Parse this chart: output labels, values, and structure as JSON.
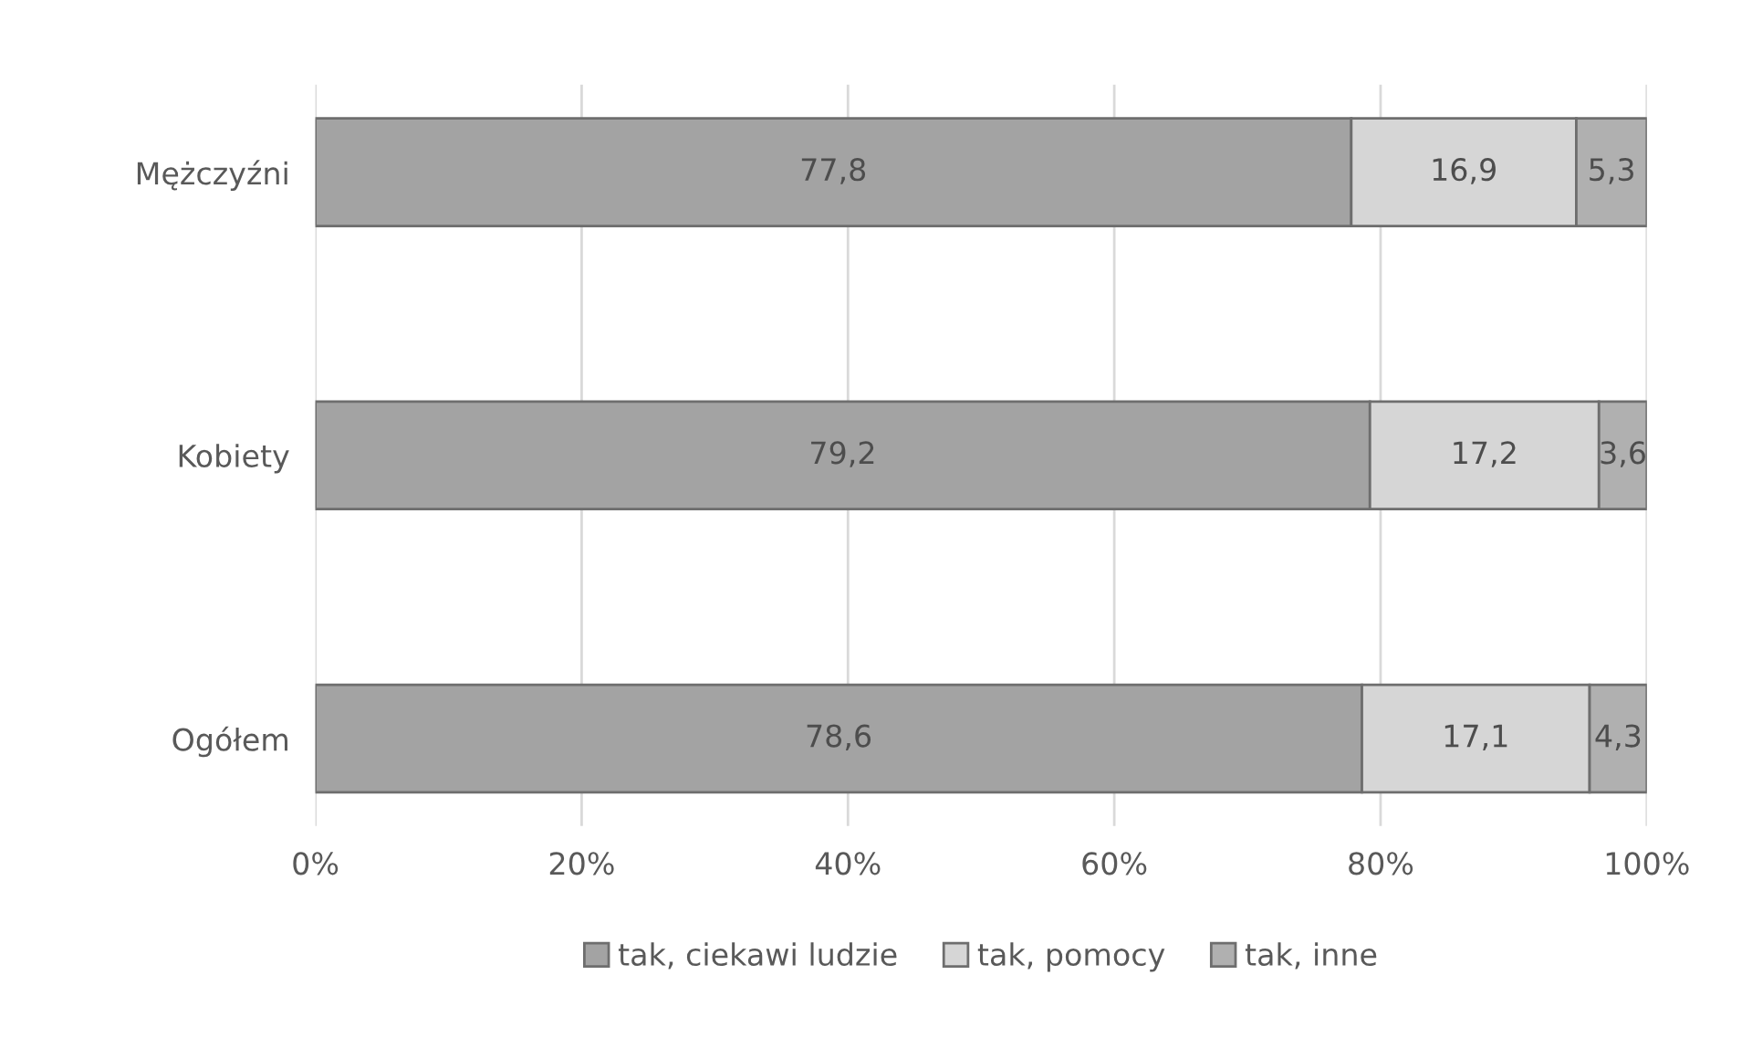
{
  "chart_data": {
    "type": "bar",
    "orientation": "horizontal",
    "stacked": true,
    "categories": [
      "Mężczyźni",
      "Kobiety",
      "Ogółem"
    ],
    "series": [
      {
        "name": "tak, ciekawi ludzie",
        "color": "#a3a3a3",
        "values": [
          77.8,
          79.2,
          78.6
        ],
        "value_labels": [
          "77,8",
          "79,2",
          "78,6"
        ]
      },
      {
        "name": "tak, pomocy",
        "color": "#d6d6d6",
        "values": [
          16.9,
          17.2,
          17.1
        ],
        "value_labels": [
          "16,9",
          "17,2",
          "17,1"
        ]
      },
      {
        "name": "tak, inne",
        "color": "#b0b0b0",
        "values": [
          5.3,
          3.6,
          4.3
        ],
        "value_labels": [
          "5,3",
          "3,6",
          "4,3"
        ]
      }
    ],
    "xlim": [
      0,
      100
    ],
    "xticks": [
      {
        "value": 0,
        "label": "0%"
      },
      {
        "value": 20,
        "label": "20%"
      },
      {
        "value": 40,
        "label": "40%"
      },
      {
        "value": 60,
        "label": "60%"
      },
      {
        "value": 80,
        "label": "80%"
      },
      {
        "value": 100,
        "label": "100%"
      }
    ],
    "grid": "x",
    "legend": "bottom"
  }
}
